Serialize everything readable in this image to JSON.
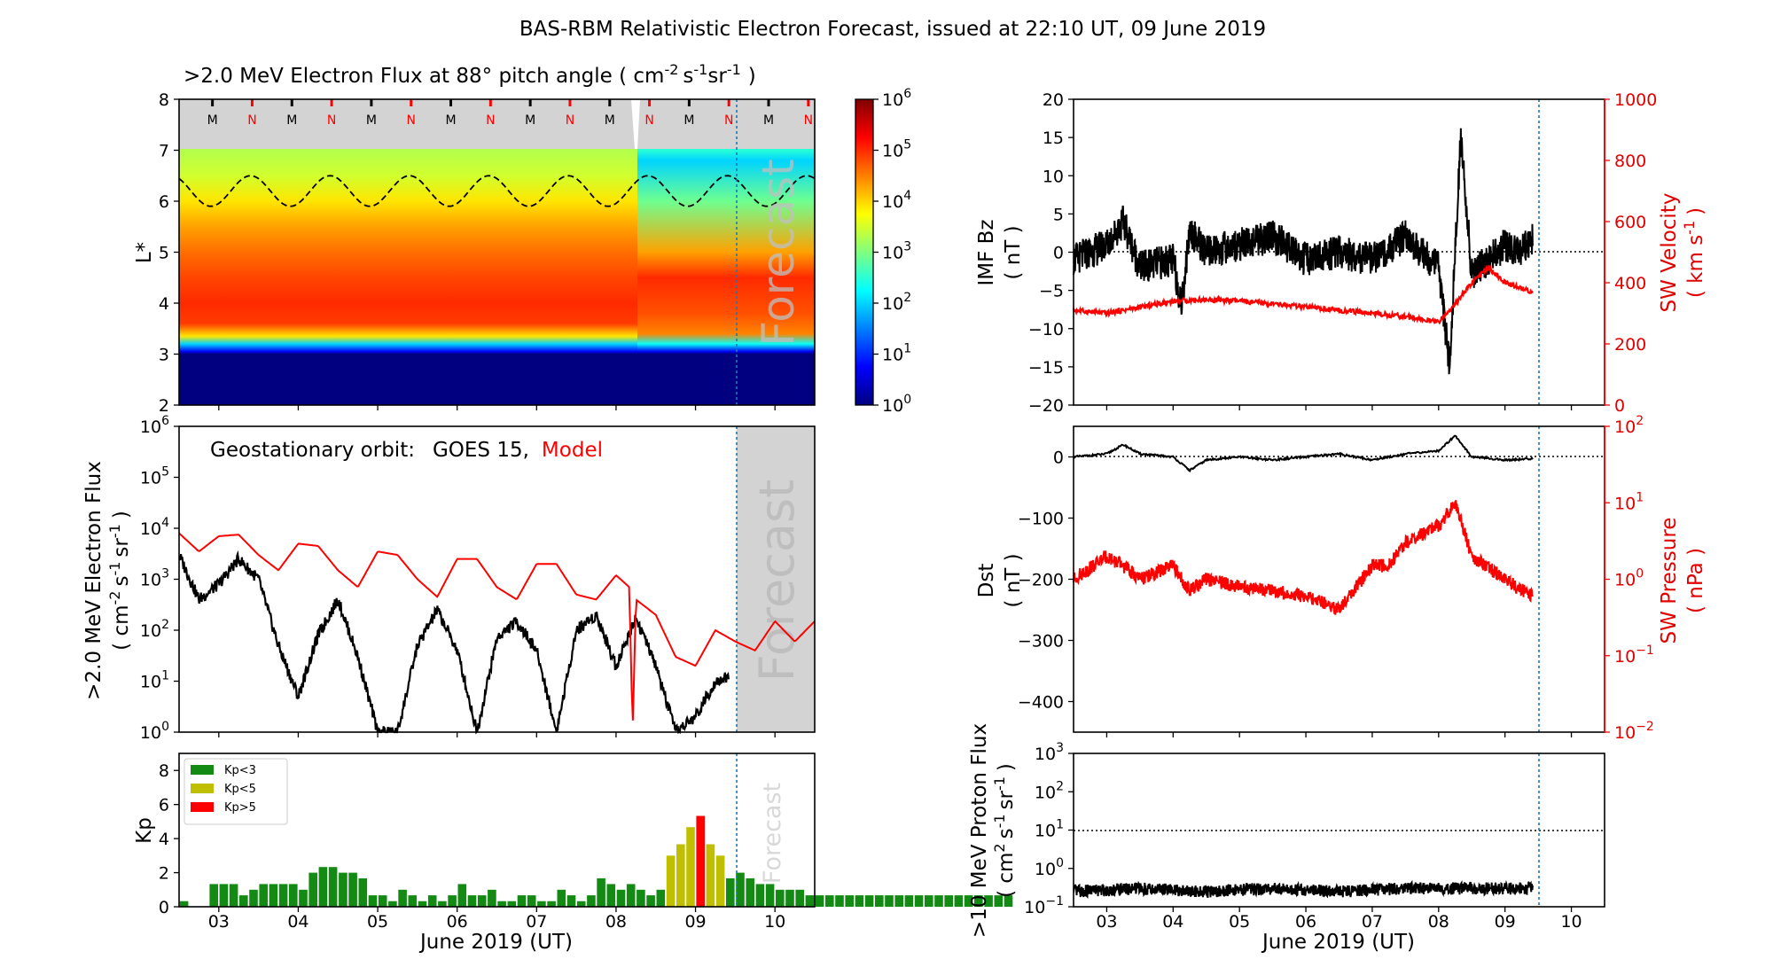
{
  "suptitle": "BAS-RBM Relativistic Electron Forecast, issued at 22:10 UT, 09 June 2019",
  "colors": {
    "observed": "#000000",
    "model": "#ff0000",
    "forecast_shade": "#d3d3d3",
    "kp_low": "#138a13",
    "kp_mid": "#bfbf00",
    "kp_high": "#ff0000",
    "forecast_line": "#1f77b4"
  },
  "chart_data": [
    {
      "id": "flux_map",
      "type": "heatmap",
      "title": ">2.0 MeV Electron Flux at 88$^\\circ$ pitch angle ( cm$^{-2}$ s$^{-1}$ sr$^{-1}$ )",
      "title_text": ">2.0 MeV Electron Flux at 88° pitch angle ( cm",
      "title_units": [
        "-2",
        "s",
        "-1",
        "sr",
        "-1",
        ")"
      ],
      "ylabel": "L*",
      "ylim": [
        2,
        8
      ],
      "yticks": [
        "2",
        "3",
        "4",
        "5",
        "6",
        "7",
        "8"
      ],
      "xlim": [
        "2019-06-02T12:00",
        "2019-06-10T12:00"
      ],
      "colorbar": {
        "scale": "log",
        "range": [
          1,
          1000000
        ],
        "ticks": [
          "10^0",
          "10^1",
          "10^2",
          "10^3",
          "10^4",
          "10^5",
          "10^6"
        ]
      },
      "forecast_label": "Forecast",
      "orbit_markers": [
        "M",
        "N",
        "M",
        "N",
        "M",
        "N",
        "M",
        "N",
        "M",
        "N",
        "M",
        "N",
        "M",
        "N",
        "M",
        "N"
      ],
      "regions": [
        {
          "L": [
            2.0,
            3.0
          ],
          "flux": 1
        },
        {
          "L": [
            3.0,
            3.3
          ],
          "flux": 100
        },
        {
          "L": [
            3.3,
            4.0
          ],
          "flux": 100000
        },
        {
          "L": [
            4.0,
            5.5
          ],
          "flux": 30000
        },
        {
          "L": [
            5.5,
            7.0
          ],
          "flux": 3000
        }
      ],
      "geo_Lstar_range": [
        5.9,
        6.5
      ],
      "storm_time": "2019-06-08T05:00"
    },
    {
      "id": "geo_flux",
      "type": "line",
      "annotation_prefix": "Geostationary orbit:",
      "annotation_series": [
        "GOES 15,",
        "Model"
      ],
      "ylabel": [
        ">2.0 MeV Electron Flux",
        "( cm",
        "-2",
        "s",
        "-1",
        "sr",
        "-1",
        ")"
      ],
      "yscale": "log",
      "ylim": [
        1,
        1000000
      ],
      "yticks": [
        "10^0",
        "10^1",
        "10^2",
        "10^3",
        "10^4",
        "10^5",
        "10^6"
      ],
      "forecast_label": "Forecast",
      "series": [
        {
          "name": "GOES 15",
          "color": "#000000",
          "x": [
            "2019-06-02T12:00",
            "2019-06-02T18:00",
            "2019-06-03T00:00",
            "2019-06-03T06:00",
            "2019-06-03T12:00",
            "2019-06-03T18:00",
            "2019-06-04T00:00",
            "2019-06-04T06:00",
            "2019-06-04T12:00",
            "2019-06-04T18:00",
            "2019-06-05T00:00",
            "2019-06-05T06:00",
            "2019-06-05T12:00",
            "2019-06-05T18:00",
            "2019-06-06T00:00",
            "2019-06-06T06:00",
            "2019-06-06T12:00",
            "2019-06-06T18:00",
            "2019-06-07T00:00",
            "2019-06-07T06:00",
            "2019-06-07T12:00",
            "2019-06-07T18:00",
            "2019-06-08T00:00",
            "2019-06-08T06:00",
            "2019-06-08T12:00",
            "2019-06-08T18:00",
            "2019-06-09T00:00",
            "2019-06-09T06:00",
            "2019-06-09T10:00"
          ],
          "values": [
            3000,
            400,
            800,
            2500,
            1000,
            50,
            5,
            80,
            400,
            30,
            1,
            1,
            50,
            250,
            40,
            1,
            70,
            150,
            40,
            1,
            100,
            200,
            20,
            180,
            20,
            1,
            2,
            10,
            12
          ]
        },
        {
          "name": "Model",
          "color": "#ff0000",
          "x": [
            "2019-06-02T12:00",
            "2019-06-02T18:00",
            "2019-06-03T00:00",
            "2019-06-03T06:00",
            "2019-06-03T12:00",
            "2019-06-03T18:00",
            "2019-06-04T00:00",
            "2019-06-04T06:00",
            "2019-06-04T12:00",
            "2019-06-04T18:00",
            "2019-06-05T00:00",
            "2019-06-05T06:00",
            "2019-06-05T12:00",
            "2019-06-05T18:00",
            "2019-06-06T00:00",
            "2019-06-06T06:00",
            "2019-06-06T12:00",
            "2019-06-06T18:00",
            "2019-06-07T00:00",
            "2019-06-07T06:00",
            "2019-06-07T12:00",
            "2019-06-07T18:00",
            "2019-06-08T00:00",
            "2019-06-08T04:00",
            "2019-06-08T05:00",
            "2019-06-08T06:00",
            "2019-06-08T12:00",
            "2019-06-08T18:00",
            "2019-06-09T00:00",
            "2019-06-09T06:00",
            "2019-06-09T12:00",
            "2019-06-09T18:00",
            "2019-06-10T00:00",
            "2019-06-10T06:00",
            "2019-06-10T12:00"
          ],
          "values": [
            8000,
            3500,
            7000,
            7500,
            3000,
            1500,
            5000,
            4500,
            1500,
            700,
            3500,
            3000,
            1000,
            450,
            2500,
            2500,
            700,
            400,
            2000,
            2000,
            500,
            400,
            1200,
            700,
            1,
            400,
            200,
            30,
            20,
            100,
            60,
            40,
            150,
            60,
            150
          ]
        }
      ]
    },
    {
      "id": "kp",
      "type": "bar",
      "ylabel": "Kp",
      "ylim": [
        0,
        9
      ],
      "yticks": [
        "0",
        "2",
        "4",
        "6",
        "8"
      ],
      "xlabel": "June 2019 (UT)",
      "xticks": [
        "03",
        "04",
        "05",
        "06",
        "07",
        "08",
        "09",
        "10"
      ],
      "legend": [
        "Kp<3",
        "Kp<5",
        "Kp>5"
      ],
      "forecast_label": "Forecast",
      "x_start": "2019-06-02T12:00",
      "bin_hours": 3,
      "values": [
        0.33,
        0,
        0,
        1.33,
        1.33,
        1.33,
        0.67,
        1,
        1.33,
        1.33,
        1.33,
        1.33,
        1,
        2,
        2.33,
        2.33,
        2,
        2,
        1.67,
        0.67,
        0.67,
        0.33,
        1,
        0.67,
        0.33,
        0.67,
        0.33,
        0.67,
        1.33,
        0.67,
        0.67,
        1,
        0.33,
        0.33,
        0.67,
        0.67,
        0.33,
        0.33,
        1,
        0.67,
        0.33,
        0.67,
        1.67,
        1.33,
        1,
        1.33,
        1,
        0.67,
        1,
        3,
        3.67,
        4.67,
        5.33,
        3.67,
        3,
        1.67,
        2,
        1.67,
        1.33,
        1.33,
        1,
        1,
        1,
        0.67,
        0.67,
        0.67,
        0.67,
        0.67,
        0.67,
        0.67,
        0.67,
        0.67,
        0.67,
        0.67,
        0.67,
        0.67,
        0.67,
        0.67,
        0.67,
        0.67,
        0.67,
        0.67,
        0.67,
        0.67
      ]
    },
    {
      "id": "imf",
      "type": "line",
      "ylabel_left": [
        "IMF Bz",
        "( nT )"
      ],
      "ylabel_right": [
        "SW Velocity",
        "( km s",
        "-1",
        ")"
      ],
      "ylim_left": [
        -20,
        20
      ],
      "yticks_left": [
        "−20",
        "−15",
        "−10",
        "−5",
        "0",
        "5",
        "10",
        "15",
        "20"
      ],
      "ylim_right": [
        0,
        1000
      ],
      "yticks_right": [
        "0",
        "200",
        "400",
        "600",
        "800",
        "1000"
      ],
      "series": [
        {
          "name": "IMF Bz",
          "color": "#000000",
          "x": [
            "2019-06-02T12:00",
            "2019-06-03T00:00",
            "2019-06-03T06:00",
            "2019-06-03T12:00",
            "2019-06-04T00:00",
            "2019-06-04T03:00",
            "2019-06-04T06:00",
            "2019-06-04T12:00",
            "2019-06-05T00:00",
            "2019-06-05T12:00",
            "2019-06-06T00:00",
            "2019-06-06T12:00",
            "2019-06-07T00:00",
            "2019-06-07T12:00",
            "2019-06-08T00:00",
            "2019-06-08T04:00",
            "2019-06-08T08:00",
            "2019-06-08T12:00",
            "2019-06-09T00:00",
            "2019-06-09T06:00",
            "2019-06-09T10:00"
          ],
          "values": [
            -1,
            1,
            4,
            -2,
            -1,
            -7,
            3,
            0,
            1,
            2,
            -1,
            0,
            -1,
            2,
            -2,
            -15,
            15,
            -3,
            1,
            0,
            2
          ]
        },
        {
          "name": "SW Velocity",
          "color": "#ff0000",
          "x": [
            "2019-06-02T12:00",
            "2019-06-03T00:00",
            "2019-06-03T12:00",
            "2019-06-04T00:00",
            "2019-06-04T12:00",
            "2019-06-05T00:00",
            "2019-06-05T12:00",
            "2019-06-06T00:00",
            "2019-06-06T12:00",
            "2019-06-07T00:00",
            "2019-06-07T12:00",
            "2019-06-08T00:00",
            "2019-06-08T06:00",
            "2019-06-08T12:00",
            "2019-06-08T18:00",
            "2019-06-09T00:00",
            "2019-06-09T10:00"
          ],
          "values": [
            310,
            300,
            320,
            340,
            345,
            340,
            330,
            320,
            310,
            300,
            290,
            270,
            330,
            400,
            450,
            400,
            370
          ]
        }
      ]
    },
    {
      "id": "dst",
      "type": "line",
      "ylabel_left": [
        "Dst",
        "( nT )"
      ],
      "ylabel_right": [
        "SW Pressure",
        "( nPa )"
      ],
      "ylim_left": [
        -450,
        50
      ],
      "yticks_left": [
        "0",
        "−100",
        "−200",
        "−300",
        "−400"
      ],
      "ylim_right": [
        0.01,
        100
      ],
      "yscale_right": "log",
      "yticks_right": [
        "10^-2",
        "10^-1",
        "10^0",
        "10^1",
        "10^2"
      ],
      "series": [
        {
          "name": "Dst",
          "color": "#000000",
          "x": [
            "2019-06-02T12:00",
            "2019-06-03T00:00",
            "2019-06-03T06:00",
            "2019-06-03T12:00",
            "2019-06-04T00:00",
            "2019-06-04T06:00",
            "2019-06-04T12:00",
            "2019-06-05T00:00",
            "2019-06-05T12:00",
            "2019-06-06T00:00",
            "2019-06-06T12:00",
            "2019-06-07T00:00",
            "2019-06-07T12:00",
            "2019-06-08T00:00",
            "2019-06-08T06:00",
            "2019-06-08T12:00",
            "2019-06-09T00:00",
            "2019-06-09T10:00"
          ],
          "values": [
            0,
            5,
            20,
            5,
            0,
            -22,
            -5,
            0,
            -5,
            0,
            5,
            -5,
            5,
            10,
            35,
            0,
            -5,
            -3
          ]
        },
        {
          "name": "SW Pressure",
          "color": "#ff0000",
          "x": [
            "2019-06-02T12:00",
            "2019-06-03T00:00",
            "2019-06-03T06:00",
            "2019-06-03T12:00",
            "2019-06-04T00:00",
            "2019-06-04T06:00",
            "2019-06-04T12:00",
            "2019-06-05T00:00",
            "2019-06-05T12:00",
            "2019-06-06T00:00",
            "2019-06-06T12:00",
            "2019-06-07T00:00",
            "2019-06-07T06:00",
            "2019-06-07T12:00",
            "2019-06-08T00:00",
            "2019-06-08T06:00",
            "2019-06-08T12:00",
            "2019-06-09T00:00",
            "2019-06-09T10:00"
          ],
          "values": [
            1.0,
            2.0,
            1.5,
            1.0,
            1.5,
            0.7,
            1.0,
            0.8,
            0.7,
            0.6,
            0.4,
            1.5,
            1.5,
            3.0,
            5.0,
            10.0,
            2.0,
            1.0,
            0.6
          ]
        }
      ]
    },
    {
      "id": "proton",
      "type": "line",
      "ylabel": [
        ">10 MeV Proton Flux",
        "( cm",
        "2",
        "s",
        "-1",
        "sr",
        "-1",
        ")"
      ],
      "yscale": "log",
      "ylim": [
        0.1,
        1000
      ],
      "yticks": [
        "10^-1",
        "10^0",
        "10^1",
        "10^2",
        "10^3"
      ],
      "xlabel": "June 2019 (UT)",
      "xticks": [
        "03",
        "04",
        "05",
        "06",
        "07",
        "08",
        "09",
        "10"
      ],
      "threshold": 10,
      "series": [
        {
          "name": ">10 MeV Proton Flux",
          "color": "#000000",
          "x": [
            "2019-06-02T12:00",
            "2019-06-03T12:00",
            "2019-06-04T12:00",
            "2019-06-05T12:00",
            "2019-06-06T12:00",
            "2019-06-07T12:00",
            "2019-06-08T12:00",
            "2019-06-09T10:00"
          ],
          "values": [
            0.25,
            0.3,
            0.25,
            0.3,
            0.25,
            0.3,
            0.3,
            0.3
          ]
        }
      ]
    }
  ]
}
